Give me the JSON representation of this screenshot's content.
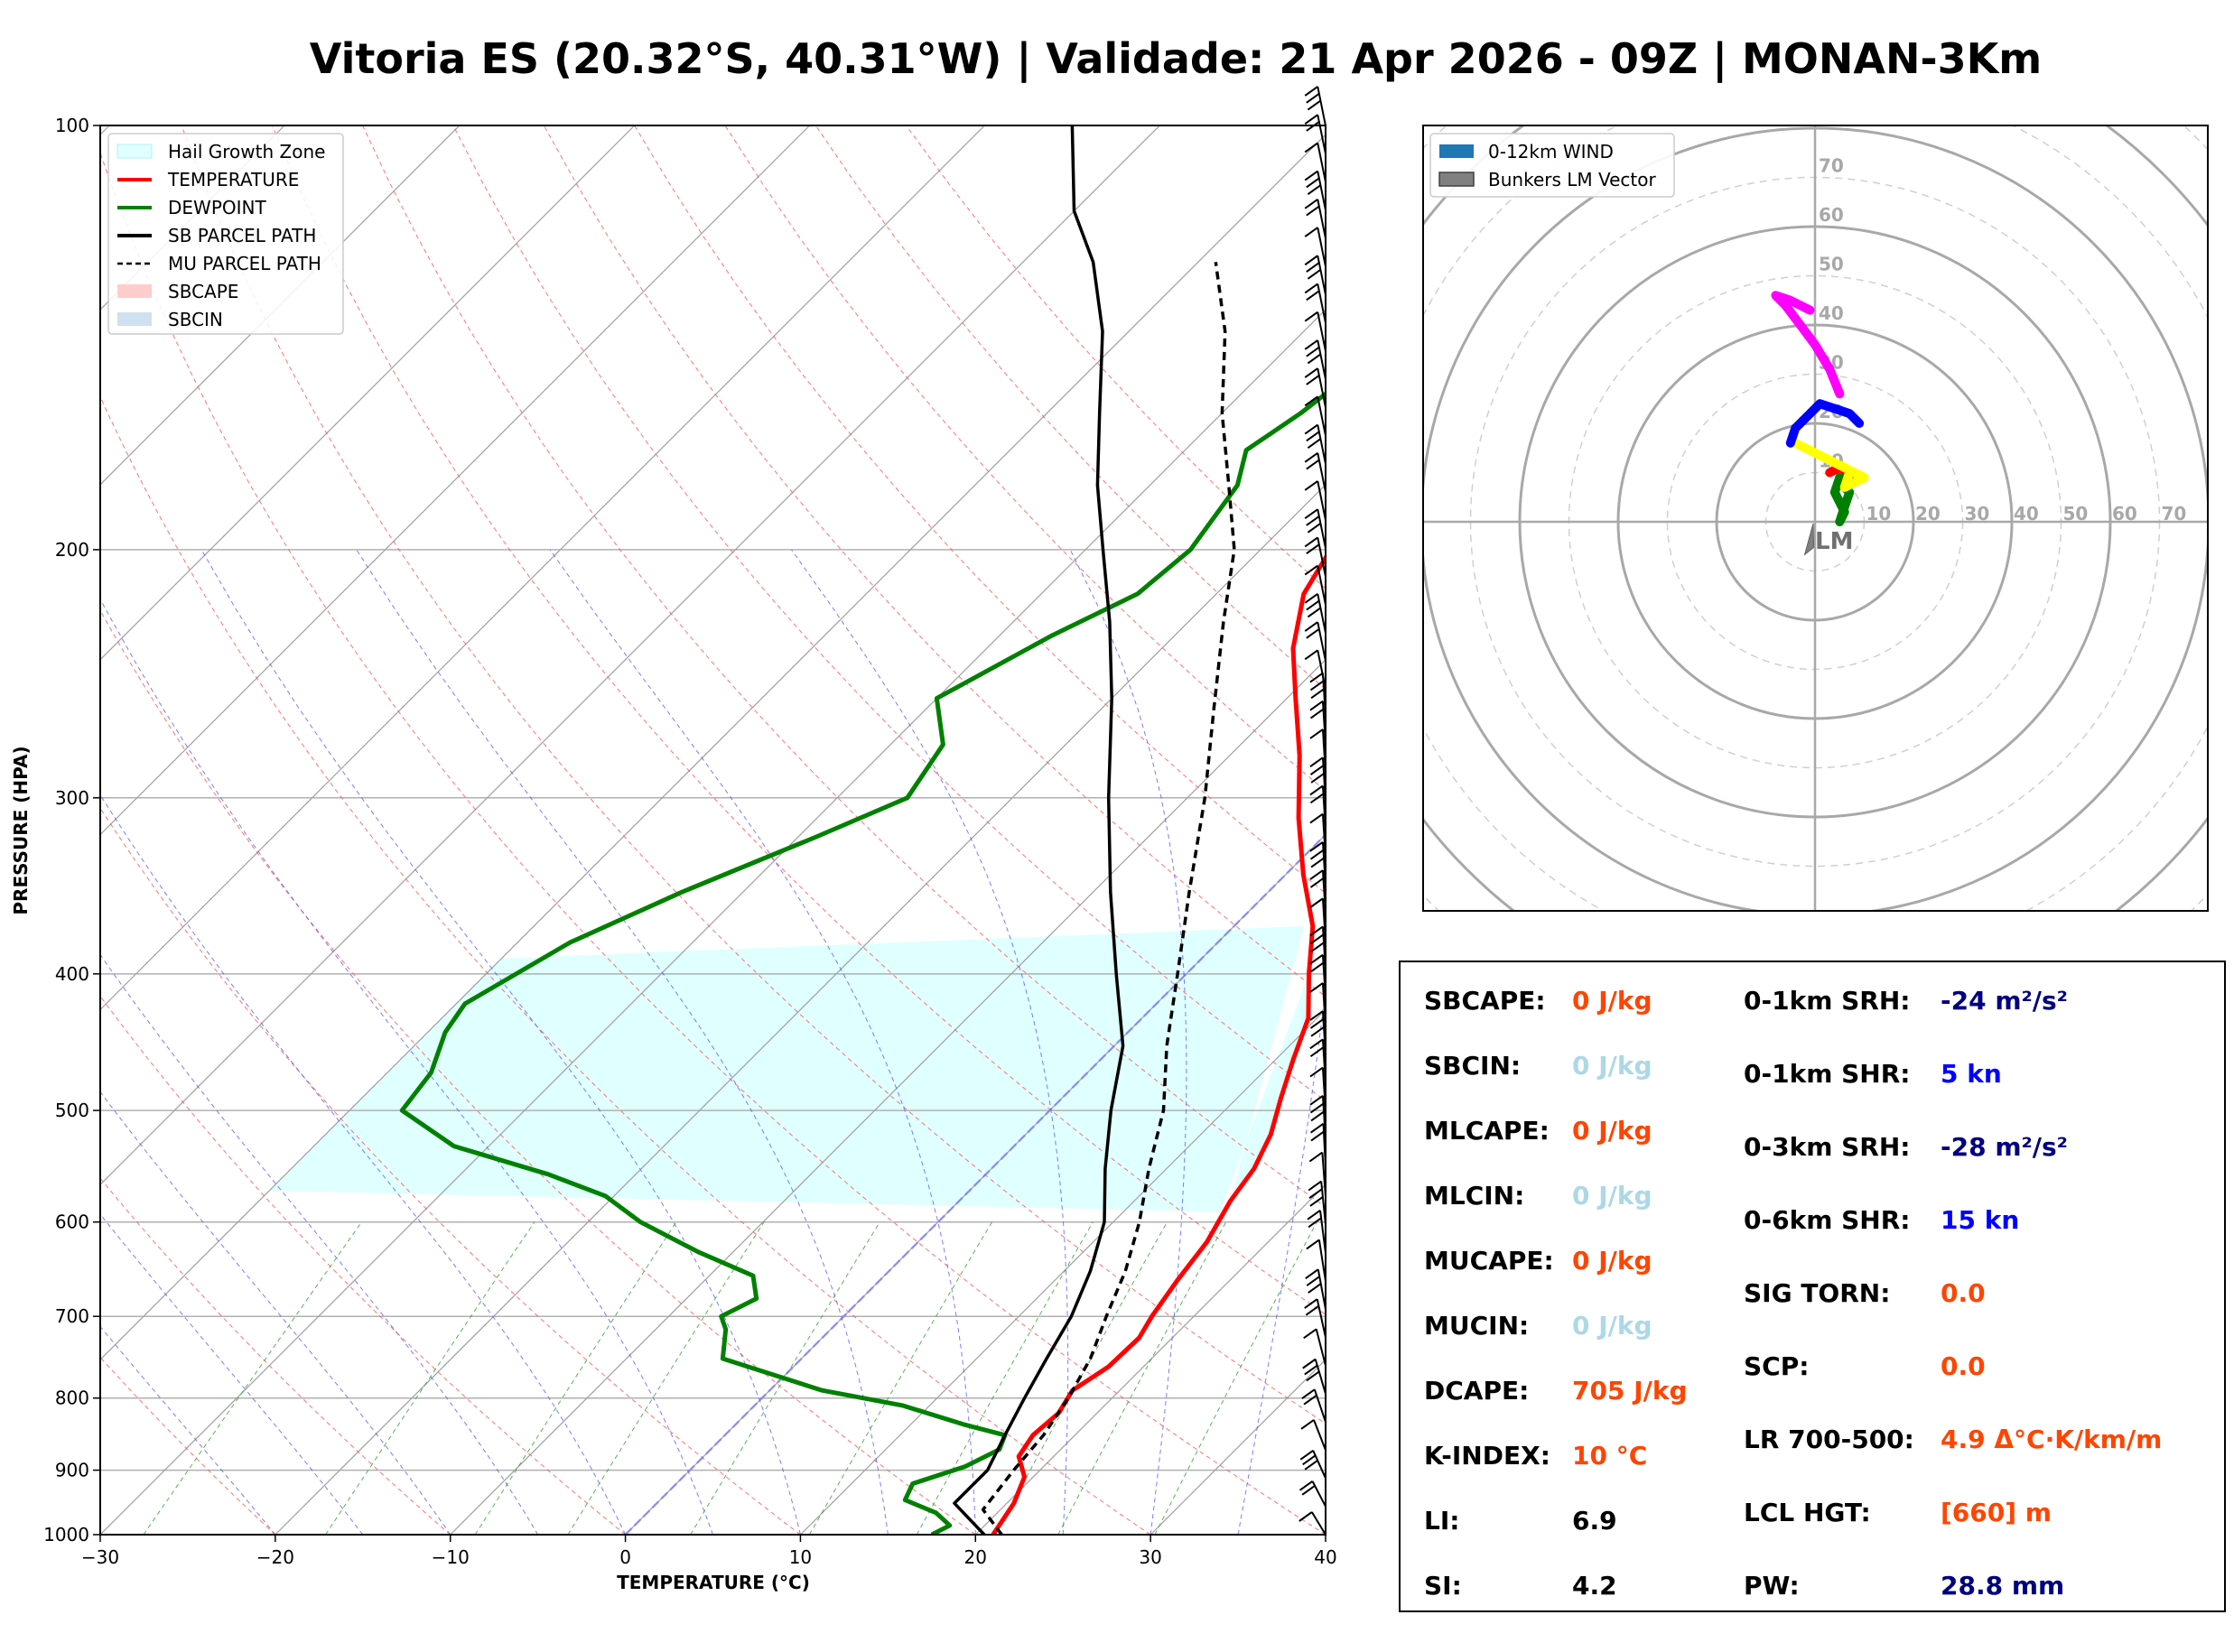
{
  "title": "Vitoria ES (20.32°S, 40.31°W) | Validade: 21 Apr 2026 - 09Z | MONAN-3Km",
  "chart_data": [
    {
      "type": "line",
      "subtype": "skew-t log-p",
      "xlabel": "TEMPERATURE (°C)",
      "ylabel": "PRESSURE (HPA)",
      "xlim": [
        -30,
        40
      ],
      "ylim": [
        1000,
        100
      ],
      "yscale": "log",
      "x_ticks": [
        -30,
        -20,
        -10,
        0,
        10,
        20,
        30,
        40
      ],
      "x_tick_labels": [
        "−30",
        "−20",
        "−10",
        "0",
        "10",
        "20",
        "30",
        "40"
      ],
      "y_ticks": [
        1000,
        900,
        800,
        700,
        600,
        500,
        400,
        300,
        200,
        100
      ],
      "grid": true,
      "legend": {
        "placement": "top-left",
        "entries": [
          {
            "label": "Hail Growth Zone",
            "color": "#e0ffff",
            "kind": "patch"
          },
          {
            "label": "TEMPERATURE",
            "color": "#ff0000",
            "kind": "line"
          },
          {
            "label": "DEWPOINT",
            "color": "#008000",
            "kind": "line"
          },
          {
            "label": "SB PARCEL PATH",
            "color": "#000000",
            "kind": "line"
          },
          {
            "label": "MU PARCEL PATH",
            "color": "#000000",
            "kind": "dashed"
          },
          {
            "label": "SBCAPE",
            "color": "#ffcccc",
            "kind": "patch"
          },
          {
            "label": "SBCIN",
            "color": "#cfe0f0",
            "kind": "patch"
          }
        ]
      },
      "series": [
        {
          "name": "TEMPERATURE",
          "color": "#ff0000",
          "points": [
            [
              21.0,
              1000
            ],
            [
              20.4,
              950
            ],
            [
              19.5,
              910
            ],
            [
              18.0,
              880
            ],
            [
              17.6,
              850
            ],
            [
              17.8,
              820
            ],
            [
              17.3,
              790
            ],
            [
              18.0,
              760
            ],
            [
              18.1,
              725
            ],
            [
              17.6,
              700
            ],
            [
              17.0,
              660
            ],
            [
              16.5,
              620
            ],
            [
              15.5,
              580
            ],
            [
              15.0,
              550
            ],
            [
              14.0,
              520
            ],
            [
              12.5,
              490
            ],
            [
              11.0,
              460
            ],
            [
              9.5,
              430
            ],
            [
              7.0,
              400
            ],
            [
              4.5,
              370
            ],
            [
              1.0,
              340
            ],
            [
              -2.5,
              310
            ],
            [
              -6.0,
              280
            ],
            [
              -9.5,
              255
            ],
            [
              -12.5,
              235
            ],
            [
              -15.0,
              215
            ],
            [
              -16.0,
              200
            ],
            [
              -15.0,
              185
            ],
            [
              -14.5,
              175
            ],
            [
              -16.0,
              160
            ],
            [
              -12.5,
              140
            ],
            [
              -9.5,
              125
            ],
            [
              -6.0,
              110
            ],
            [
              -3.0,
              100
            ]
          ]
        },
        {
          "name": "DEWPOINT",
          "color": "#008000",
          "points": [
            [
              17.5,
              1000
            ],
            [
              18.0,
              985
            ],
            [
              16.5,
              965
            ],
            [
              14.0,
              945
            ],
            [
              13.5,
              920
            ],
            [
              15.5,
              895
            ],
            [
              16.5,
              870
            ],
            [
              16.0,
              850
            ],
            [
              13.0,
              835
            ],
            [
              8.5,
              810
            ],
            [
              3.0,
              790
            ],
            [
              -4.5,
              750
            ],
            [
              -6.0,
              715
            ],
            [
              -7.0,
              700
            ],
            [
              -6.0,
              680
            ],
            [
              -7.5,
              655
            ],
            [
              -12.0,
              630
            ],
            [
              -17.0,
              600
            ],
            [
              -20.5,
              575
            ],
            [
              -25.0,
              555
            ],
            [
              -32.0,
              530
            ],
            [
              -37.0,
              500
            ],
            [
              -37.5,
              470
            ],
            [
              -39.0,
              440
            ],
            [
              -39.5,
              420
            ],
            [
              -37.0,
              380
            ],
            [
              -33.5,
              350
            ],
            [
              -29.0,
              320
            ],
            [
              -26.0,
              300
            ],
            [
              -27.0,
              275
            ],
            [
              -30.0,
              255
            ],
            [
              -27.0,
              230
            ],
            [
              -24.5,
              215
            ],
            [
              -24.0,
              200
            ],
            [
              -25.0,
              180
            ],
            [
              -26.5,
              170
            ],
            [
              -25.5,
              160
            ],
            [
              -25.0,
              152
            ],
            [
              -25.5,
              130
            ],
            [
              -25.0,
              115
            ],
            [
              -24.0,
              100
            ]
          ]
        },
        {
          "name": "SB PARCEL PATH",
          "color": "#000000",
          "points": [
            [
              20.5,
              1000
            ],
            [
              17.0,
              950
            ],
            [
              17.0,
              900
            ],
            [
              16.0,
              850
            ],
            [
              15.0,
              800
            ],
            [
              14.0,
              750
            ],
            [
              13.0,
              700
            ],
            [
              11.5,
              650
            ],
            [
              9.5,
              600
            ],
            [
              6.5,
              550
            ],
            [
              3.5,
              500
            ],
            [
              0.5,
              450
            ],
            [
              -4.0,
              400
            ],
            [
              -9.0,
              350
            ],
            [
              -14.5,
              300
            ],
            [
              -20.0,
              255
            ],
            [
              -24.5,
              225
            ],
            [
              -29.0,
              200
            ],
            [
              -33.0,
              180
            ],
            [
              -37.0,
              160
            ],
            [
              -41.5,
              140
            ],
            [
              -46.0,
              125
            ],
            [
              -50.0,
              115
            ],
            [
              -55.0,
              100
            ]
          ]
        },
        {
          "name": "MU PARCEL PATH",
          "color": "#000000",
          "dashed": true,
          "points": [
            [
              21.5,
              1000
            ],
            [
              19.0,
              960
            ],
            [
              18.5,
              900
            ],
            [
              18.2,
              850
            ],
            [
              17.5,
              800
            ],
            [
              16.5,
              750
            ],
            [
              15.0,
              700
            ],
            [
              13.5,
              650
            ],
            [
              11.5,
              600
            ],
            [
              9.0,
              550
            ],
            [
              6.5,
              500
            ],
            [
              3.0,
              450
            ],
            [
              -0.5,
              400
            ],
            [
              -4.5,
              350
            ],
            [
              -9.0,
              300
            ],
            [
              -13.5,
              260
            ],
            [
              -18.0,
              225
            ],
            [
              -21.5,
              200
            ],
            [
              -25.5,
              180
            ],
            [
              -30.0,
              160
            ],
            [
              -34.5,
              140
            ],
            [
              -39.0,
              125
            ]
          ]
        }
      ],
      "hail_growth_zone": {
        "top_hpa": 380,
        "bottom_hpa": 600,
        "color": "#e0ffff"
      },
      "wind_barbs": "right edge, 1000-100 hPa"
    },
    {
      "type": "hodograph",
      "legend": {
        "placement": "top-left",
        "entries": [
          {
            "label": "0-12km WIND",
            "color": "#1f77b4",
            "kind": "patch"
          },
          {
            "label": "Bunkers LM Vector",
            "color": "#808080",
            "kind": "patch"
          }
        ]
      },
      "ring_labels_y": [
        "10",
        "20",
        "30",
        "40",
        "50",
        "60",
        "70"
      ],
      "ring_labels_x": [
        "10",
        "20",
        "30",
        "40",
        "50",
        "60",
        "70"
      ],
      "lm_label": "LM",
      "segments": [
        {
          "name": "0-1km",
          "color": "#ff0000",
          "points": [
            [
              3,
              10
            ],
            [
              5,
              11
            ],
            [
              7,
              10
            ],
            [
              8,
              8
            ],
            [
              6,
              9
            ]
          ]
        },
        {
          "name": "1-3km",
          "color": "#008000",
          "points": [
            [
              5,
              9
            ],
            [
              4,
              6
            ],
            [
              6,
              2
            ],
            [
              5,
              0
            ],
            [
              6,
              3
            ],
            [
              7,
              6
            ],
            [
              5,
              8
            ]
          ]
        },
        {
          "name": "3-6km",
          "color": "#ffff00",
          "points": [
            [
              -4,
              16
            ],
            [
              2,
              13
            ],
            [
              8,
              10
            ],
            [
              10,
              9
            ],
            [
              6,
              7
            ],
            [
              7,
              10
            ]
          ]
        },
        {
          "name": "6-9km",
          "color": "#0000ff",
          "points": [
            [
              -5,
              16
            ],
            [
              -4,
              19
            ],
            [
              -1,
              22
            ],
            [
              1,
              24
            ],
            [
              4,
              23
            ],
            [
              7,
              22
            ],
            [
              9,
              20
            ]
          ]
        },
        {
          "name": "9-12km",
          "color": "#ff00ff",
          "points": [
            [
              5,
              26
            ],
            [
              3,
              31
            ],
            [
              0,
              36
            ],
            [
              -3,
              40
            ],
            [
              -6,
              44
            ],
            [
              -8,
              46
            ],
            [
              -5,
              45
            ],
            [
              -1,
              43
            ]
          ]
        }
      ],
      "bunkers_lm": [
        -1,
        -3
      ]
    }
  ],
  "params": {
    "col1": [
      {
        "label": "SBCAPE:",
        "value": "0 J/kg",
        "color": "#ff4500"
      },
      {
        "label": "SBCIN:",
        "value": "0 J/kg",
        "color": "#add8e6"
      },
      {
        "label": "MLCAPE:",
        "value": "0 J/kg",
        "color": "#ff4500"
      },
      {
        "label": "MLCIN:",
        "value": "0 J/kg",
        "color": "#add8e6"
      },
      {
        "label": "MUCAPE:",
        "value": "0 J/kg",
        "color": "#ff4500"
      },
      {
        "label": "MUCIN:",
        "value": "0 J/kg",
        "color": "#add8e6"
      },
      {
        "label": "DCAPE:",
        "value": "705 J/kg",
        "color": "#ff4500"
      },
      {
        "label": "K-INDEX:",
        "value": "10 °C",
        "color": "#ff4500"
      },
      {
        "label": "LI:",
        "value": "6.9",
        "color": "#000000"
      },
      {
        "label": "SI:",
        "value": "4.2",
        "color": "#000000"
      }
    ],
    "col2": [
      {
        "label": "0-1km SRH:",
        "value": "-24 m²/s²",
        "color": "#000080"
      },
      {
        "label": "0-1km SHR:",
        "value": "5 kn",
        "color": "#0000ff"
      },
      {
        "label": "0-3km SRH:",
        "value": "-28 m²/s²",
        "color": "#000080"
      },
      {
        "label": "0-6km SHR:",
        "value": "15 kn",
        "color": "#0000ff"
      },
      {
        "label": "SIG TORN:",
        "value": "0.0",
        "color": "#ff4500"
      },
      {
        "label": "SCP:",
        "value": "0.0",
        "color": "#ff4500"
      },
      {
        "label": "LR 700-500:",
        "value": "4.9 Δ°C·K/km/m",
        "color": "#ff4500"
      },
      {
        "label": "LCL HGT:",
        "value": "[660] m",
        "color": "#ff4500"
      },
      {
        "label": "PW:",
        "value": "28.8 mm",
        "color": "#000080"
      }
    ]
  }
}
